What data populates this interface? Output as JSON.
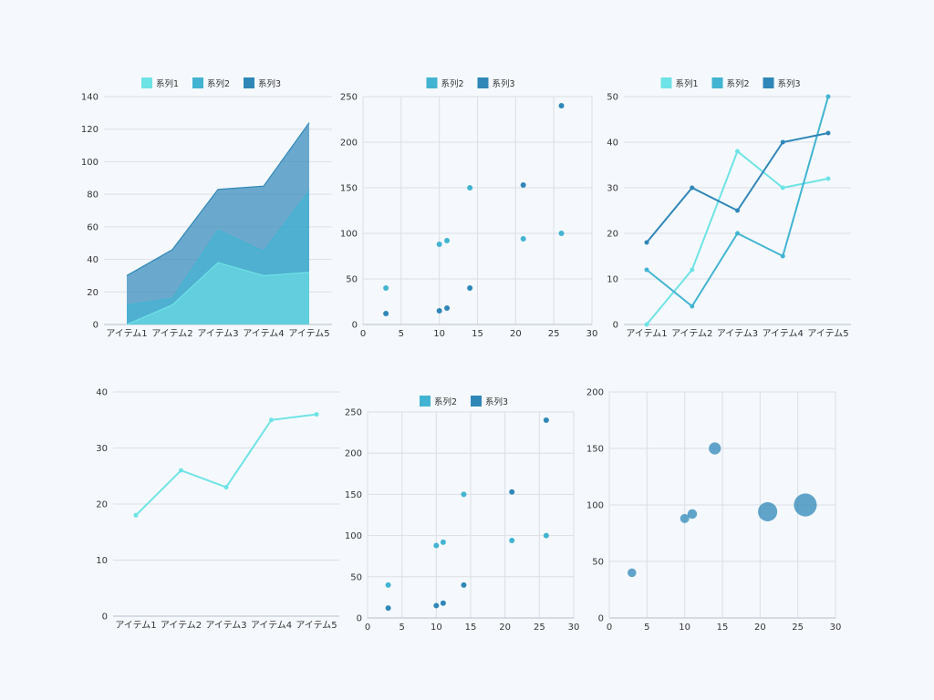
{
  "colors": {
    "s1": "#6ee3e6",
    "s2": "#42b4d2",
    "s3": "#2f87b8",
    "grid": "#dcdfe4",
    "axis": "#b8bec6"
  },
  "chart_data": [
    {
      "id": "area",
      "type": "area",
      "stacked": true,
      "categories": [
        "アイテム1",
        "アイテム2",
        "アイテム3",
        "アイテム4",
        "アイテム5"
      ],
      "series": [
        {
          "name": "系列1",
          "values": [
            0,
            12,
            38,
            30,
            32
          ]
        },
        {
          "name": "系列2",
          "values": [
            12,
            4,
            20,
            15,
            50
          ]
        },
        {
          "name": "系列3",
          "values": [
            18,
            30,
            25,
            40,
            42
          ]
        }
      ],
      "ylim": [
        0,
        140
      ],
      "yticks": [
        0,
        20,
        40,
        60,
        80,
        100,
        120,
        140
      ],
      "grid": "horizontal",
      "legend": "top"
    },
    {
      "id": "scatter1",
      "type": "scatter",
      "series": [
        {
          "name": "系列2",
          "x": [
            3,
            10,
            11,
            14,
            21,
            26
          ],
          "y": [
            40,
            88,
            92,
            150,
            94,
            100
          ]
        },
        {
          "name": "系列3",
          "x": [
            3,
            10,
            11,
            14,
            21,
            26
          ],
          "y": [
            12,
            15,
            18,
            40,
            153,
            240
          ]
        }
      ],
      "xlim": [
        0,
        30
      ],
      "xticks": [
        0,
        5,
        10,
        15,
        20,
        25,
        30
      ],
      "ylim": [
        0,
        250
      ],
      "yticks": [
        0,
        50,
        100,
        150,
        200,
        250
      ],
      "grid": "both",
      "legend": "top"
    },
    {
      "id": "line3",
      "type": "line",
      "categories": [
        "アイテム1",
        "アイテム2",
        "アイテム3",
        "アイテム4",
        "アイテム5"
      ],
      "series": [
        {
          "name": "系列1",
          "values": [
            0,
            12,
            38,
            30,
            32
          ]
        },
        {
          "name": "系列2",
          "values": [
            12,
            4,
            20,
            15,
            50
          ]
        },
        {
          "name": "系列3",
          "values": [
            18,
            30,
            25,
            40,
            42
          ]
        }
      ],
      "ylim": [
        0,
        50
      ],
      "yticks": [
        0,
        10,
        20,
        30,
        40,
        50
      ],
      "grid": "horizontal",
      "legend": "top"
    },
    {
      "id": "line1",
      "type": "line",
      "categories": [
        "アイテム1",
        "アイテム2",
        "アイテム3",
        "アイテム4",
        "アイテム5"
      ],
      "series": [
        {
          "values": [
            18,
            26,
            23,
            35,
            36
          ]
        }
      ],
      "ylim": [
        0,
        40
      ],
      "yticks": [
        0,
        10,
        20,
        30,
        40
      ],
      "grid": "horizontal",
      "legend": "none"
    },
    {
      "id": "scatter2",
      "type": "scatter",
      "series": [
        {
          "name": "系列2",
          "x": [
            3,
            10,
            11,
            14,
            21,
            26
          ],
          "y": [
            40,
            88,
            92,
            150,
            94,
            100
          ]
        },
        {
          "name": "系列3",
          "x": [
            3,
            10,
            11,
            14,
            21,
            26
          ],
          "y": [
            12,
            15,
            18,
            40,
            153,
            240
          ]
        }
      ],
      "xlim": [
        0,
        30
      ],
      "xticks": [
        0,
        5,
        10,
        15,
        20,
        25,
        30
      ],
      "ylim": [
        0,
        250
      ],
      "yticks": [
        0,
        50,
        100,
        150,
        200,
        250
      ],
      "grid": "both",
      "legend": "top"
    },
    {
      "id": "bubble",
      "type": "scatter",
      "bubble": true,
      "series": [
        {
          "x": [
            3,
            10,
            11,
            14,
            21,
            26
          ],
          "y": [
            40,
            88,
            92,
            150,
            94,
            100
          ],
          "size": [
            12,
            15,
            18,
            40,
            153,
            240
          ]
        }
      ],
      "xlim": [
        0,
        30
      ],
      "xticks": [
        0,
        5,
        10,
        15,
        20,
        25,
        30
      ],
      "ylim": [
        0,
        200
      ],
      "yticks": [
        0,
        50,
        100,
        150,
        200
      ],
      "grid": "both",
      "legend": "none"
    }
  ]
}
